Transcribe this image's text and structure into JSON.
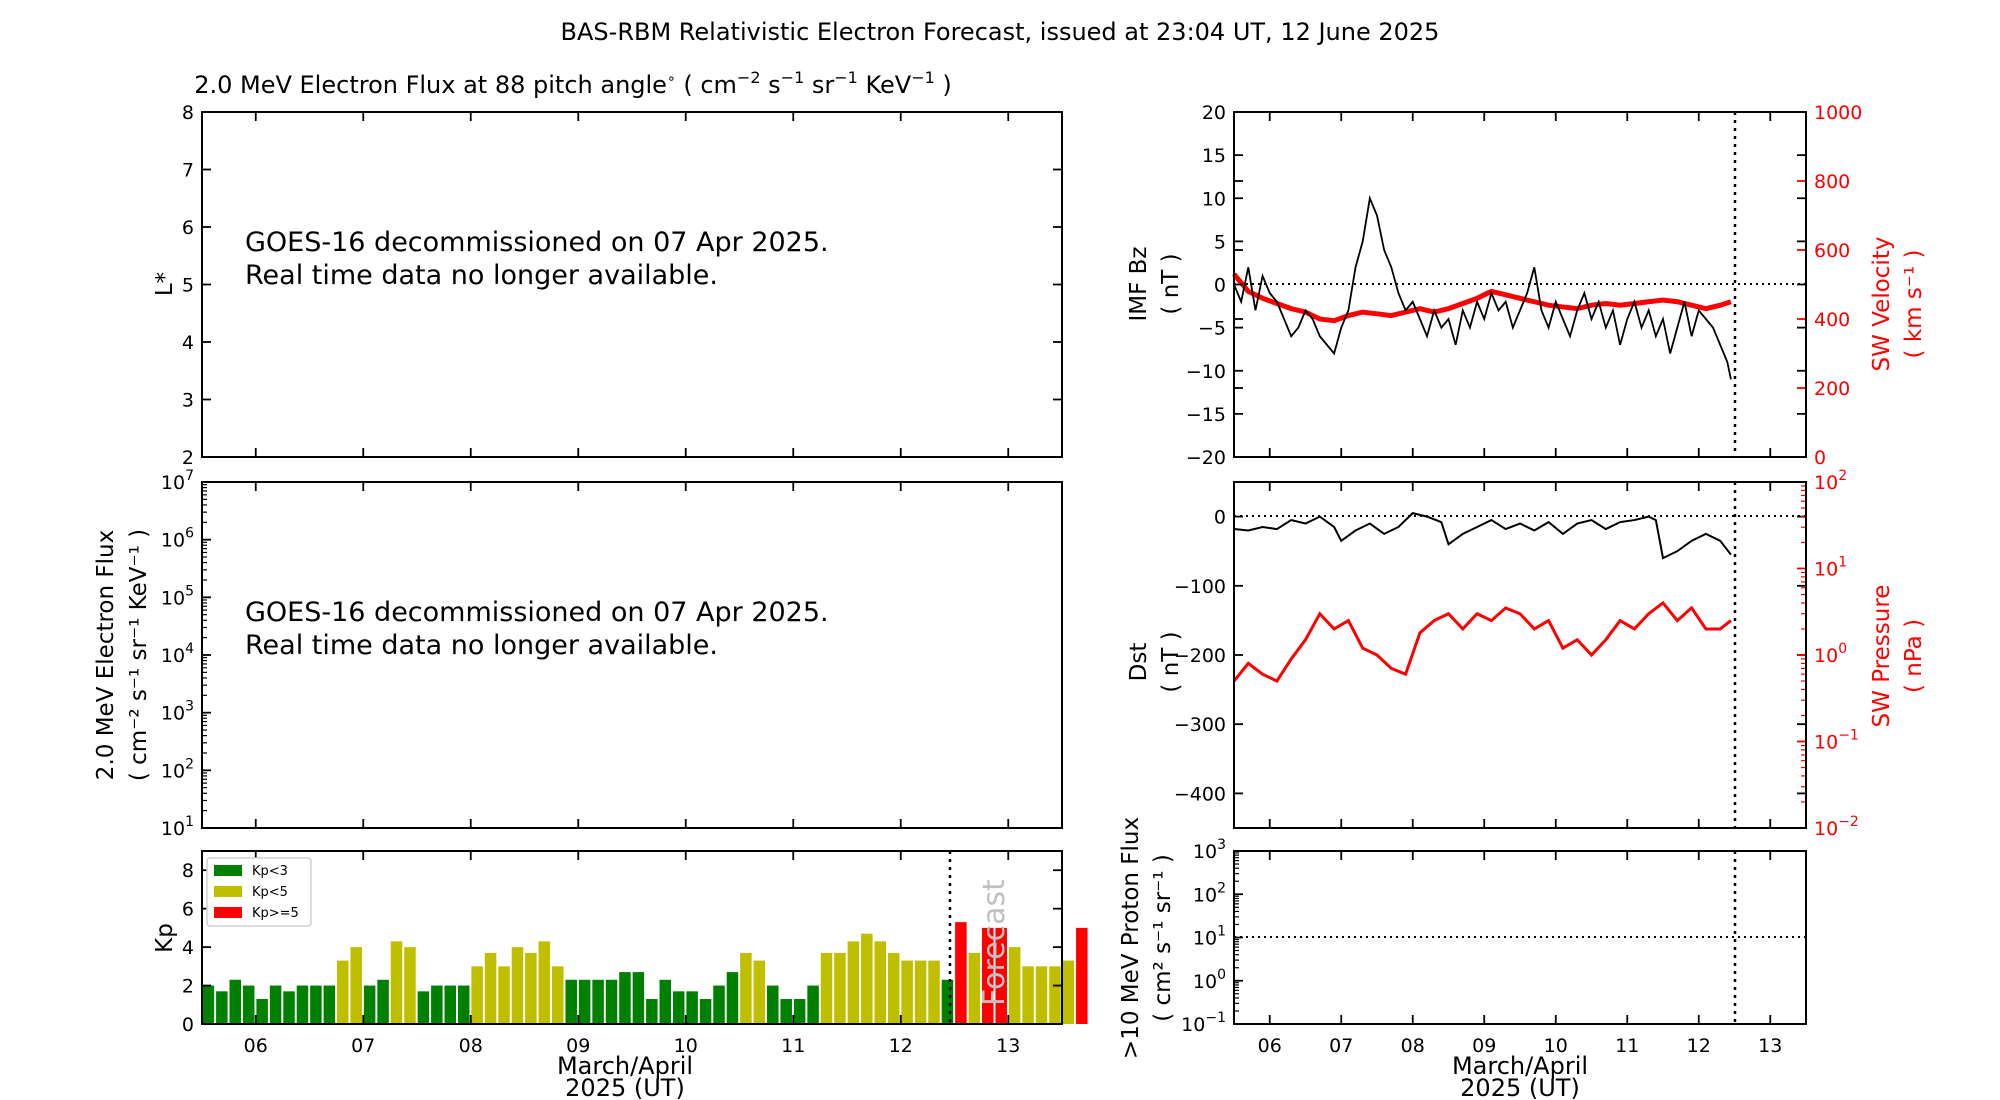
{
  "figure_title": "BAS-RBM Relativistic Electron Forecast, issued at 23:04 UT, 12 June 2025",
  "colors": {
    "green": "#008000",
    "yellow": "#bfbf00",
    "red": "#ff0000",
    "black": "#000000",
    "forecast_text": "#c0c0c0"
  },
  "date_ticks": [
    "06",
    "07",
    "08",
    "09",
    "10",
    "11",
    "12",
    "13"
  ],
  "xaxis_label_line1": "March/April",
  "xaxis_label_line2": "2025 (UT)",
  "notice": {
    "line1": "GOES-16 decommissioned on 07 Apr 2025.",
    "line2": "Real time data no longer available."
  },
  "chart_data": [
    {
      "id": "lstar",
      "type": "table",
      "title": "2.0 MeV Electron Flux at 88 pitch angle",
      "title_units": {
        "base1": "cm",
        "sup1": "−2",
        "base2": " s",
        "sup2": "−1",
        "base3": " sr",
        "sup3": "−1",
        "base4": " KeV",
        "sup4": "−1"
      },
      "ylabel": "L*",
      "ylim": [
        2,
        8
      ],
      "yticks": [
        "2",
        "3",
        "4",
        "5",
        "6",
        "7",
        "8"
      ]
    },
    {
      "id": "flux",
      "type": "line",
      "ylabel_line1": "2.0 MeV Electron Flux",
      "ylabel_line2": "( cm⁻² s⁻¹ sr⁻¹ KeV⁻¹ )",
      "yscale": "log",
      "ylim": [
        10,
        10000000
      ],
      "yticks": [
        {
          "base": "10",
          "exp": "1"
        },
        {
          "base": "10",
          "exp": "2"
        },
        {
          "base": "10",
          "exp": "3"
        },
        {
          "base": "10",
          "exp": "4"
        },
        {
          "base": "10",
          "exp": "5"
        },
        {
          "base": "10",
          "exp": "6"
        },
        {
          "base": "10",
          "exp": "7"
        }
      ]
    },
    {
      "id": "kp",
      "type": "bar",
      "ylabel": "Kp",
      "ylim": [
        0,
        9
      ],
      "yticks": [
        "0",
        "2",
        "4",
        "6",
        "8"
      ],
      "x_start_day": 5.5,
      "bin_days": 0.125,
      "now_day": 12.458,
      "forecast_label": "Forecast",
      "legend": {
        "placement": "top-left",
        "entries": [
          {
            "label": "Kp<3",
            "color": "#008000"
          },
          {
            "label": "Kp<5",
            "color": "#bfbf00"
          },
          {
            "label": "Kp>=5",
            "color": "#ff0000"
          }
        ]
      },
      "values": [
        2.0,
        1.7,
        2.3,
        2.0,
        1.3,
        2.0,
        1.7,
        2.0,
        2.0,
        2.0,
        3.3,
        4.0,
        2.0,
        2.3,
        4.3,
        4.0,
        1.7,
        2.0,
        2.0,
        2.0,
        3.0,
        3.7,
        3.0,
        4.0,
        3.7,
        4.3,
        3.0,
        2.3,
        2.3,
        2.3,
        2.3,
        2.7,
        2.7,
        1.3,
        2.3,
        1.7,
        1.7,
        1.3,
        2.0,
        2.7,
        3.7,
        3.3,
        2.0,
        1.3,
        1.3,
        2.0,
        3.7,
        3.7,
        4.3,
        4.7,
        4.3,
        3.7,
        3.3,
        3.3,
        3.3,
        2.3,
        5.3,
        3.7,
        5.0,
        5.0,
        4.0,
        3.0,
        3.0,
        3.0,
        3.3,
        5.0
      ]
    },
    {
      "id": "imf",
      "type": "line",
      "ylabel_line1": "IMF Bz",
      "ylabel_line2": "( nT )",
      "ylim": [
        -20,
        20
      ],
      "yticks": [
        "−20",
        "−15",
        "−10",
        "−5",
        "0",
        "5",
        "10",
        "15",
        "20"
      ],
      "y2label_line1": "SW Velocity",
      "y2label_line2": "( km s⁻¹ )",
      "y2lim": [
        0,
        1000
      ],
      "y2ticks": [
        "0",
        "200",
        "400",
        "600",
        "800",
        "1000"
      ],
      "series": [
        {
          "name": "IMF Bz",
          "color": "#000000",
          "x": [
            5.5,
            5.6,
            5.7,
            5.8,
            5.9,
            6.0,
            6.1,
            6.2,
            6.3,
            6.4,
            6.5,
            6.6,
            6.7,
            6.8,
            6.9,
            7.0,
            7.1,
            7.2,
            7.3,
            7.4,
            7.5,
            7.6,
            7.7,
            7.8,
            7.9,
            8.0,
            8.1,
            8.2,
            8.3,
            8.4,
            8.5,
            8.6,
            8.7,
            8.8,
            8.9,
            9.0,
            9.1,
            9.2,
            9.3,
            9.4,
            9.5,
            9.6,
            9.7,
            9.8,
            9.9,
            10.0,
            10.1,
            10.2,
            10.3,
            10.4,
            10.5,
            10.6,
            10.7,
            10.8,
            10.9,
            11.0,
            11.1,
            11.2,
            11.3,
            11.4,
            11.5,
            11.6,
            11.7,
            11.8,
            11.9,
            12.0,
            12.1,
            12.2,
            12.3,
            12.4,
            12.45
          ],
          "y": [
            0,
            -2,
            2,
            -3,
            1,
            -1,
            -2,
            -4,
            -6,
            -5,
            -3,
            -4,
            -6,
            -7,
            -8,
            -5,
            -3,
            2,
            5,
            10,
            8,
            4,
            2,
            -1,
            -3,
            -2,
            -4,
            -6,
            -3,
            -5,
            -4,
            -7,
            -3,
            -5,
            -2,
            -4,
            -1,
            -3,
            -2,
            -5,
            -3,
            -1,
            2,
            -3,
            -5,
            -2,
            -4,
            -6,
            -3,
            -1,
            -4,
            -2,
            -5,
            -3,
            -7,
            -4,
            -2,
            -5,
            -3,
            -6,
            -4,
            -8,
            -5,
            -2,
            -6,
            -3,
            -4,
            -5,
            -7,
            -9,
            -11
          ]
        },
        {
          "name": "SW Velocity",
          "color": "#ff0000",
          "x": [
            5.5,
            5.7,
            5.9,
            6.1,
            6.3,
            6.5,
            6.7,
            6.9,
            7.1,
            7.3,
            7.5,
            7.7,
            7.9,
            8.1,
            8.3,
            8.5,
            8.7,
            8.9,
            9.1,
            9.3,
            9.5,
            9.7,
            9.9,
            10.1,
            10.3,
            10.5,
            10.7,
            10.9,
            11.1,
            11.3,
            11.5,
            11.7,
            11.9,
            12.1,
            12.3,
            12.45
          ],
          "y": [
            530,
            480,
            460,
            445,
            430,
            420,
            400,
            395,
            410,
            420,
            415,
            410,
            420,
            430,
            420,
            430,
            445,
            460,
            480,
            470,
            460,
            450,
            440,
            435,
            430,
            440,
            445,
            440,
            445,
            450,
            455,
            450,
            440,
            430,
            440,
            450
          ]
        }
      ]
    },
    {
      "id": "dst",
      "type": "line",
      "ylabel_line1": "Dst",
      "ylabel_line2": "( nT )",
      "ylim": [
        -450,
        50
      ],
      "yticks": [
        "−400",
        "−300",
        "−200",
        "−100",
        "0"
      ],
      "y2label_line1": "SW Pressure",
      "y2label_line2": "( nPa )",
      "y2scale": "log",
      "y2lim": [
        0.01,
        100
      ],
      "y2ticks": [
        {
          "base": "10",
          "exp": "−2"
        },
        {
          "base": "10",
          "exp": "−1"
        },
        {
          "base": "10",
          "exp": "0"
        },
        {
          "base": "10",
          "exp": "1"
        },
        {
          "base": "10",
          "exp": "2"
        }
      ],
      "series": [
        {
          "name": "Dst",
          "color": "#000000",
          "x": [
            5.5,
            5.7,
            5.9,
            6.1,
            6.3,
            6.5,
            6.7,
            6.9,
            7.0,
            7.2,
            7.4,
            7.6,
            7.8,
            8.0,
            8.2,
            8.4,
            8.5,
            8.7,
            8.9,
            9.1,
            9.3,
            9.5,
            9.7,
            9.9,
            10.1,
            10.3,
            10.5,
            10.7,
            10.9,
            11.1,
            11.3,
            11.4,
            11.5,
            11.6,
            11.7,
            11.9,
            12.1,
            12.3,
            12.45
          ],
          "y": [
            -18,
            -20,
            -15,
            -18,
            -5,
            -10,
            0,
            -15,
            -35,
            -20,
            -10,
            -25,
            -15,
            5,
            0,
            -8,
            -40,
            -25,
            -15,
            -5,
            -18,
            -10,
            -20,
            -8,
            -25,
            -10,
            -5,
            -18,
            -8,
            -5,
            0,
            -5,
            -60,
            -55,
            -50,
            -35,
            -25,
            -35,
            -55
          ]
        },
        {
          "name": "SW Pressure",
          "color": "#ff0000",
          "x": [
            5.5,
            5.7,
            5.9,
            6.1,
            6.3,
            6.5,
            6.7,
            6.9,
            7.1,
            7.3,
            7.5,
            7.7,
            7.9,
            8.1,
            8.3,
            8.5,
            8.7,
            8.9,
            9.1,
            9.3,
            9.5,
            9.7,
            9.9,
            10.1,
            10.3,
            10.5,
            10.7,
            10.9,
            11.1,
            11.3,
            11.5,
            11.7,
            11.9,
            12.1,
            12.3,
            12.45
          ],
          "y": [
            0.5,
            0.8,
            0.6,
            0.5,
            0.9,
            1.5,
            3.0,
            2.0,
            2.5,
            1.2,
            1.0,
            0.7,
            0.6,
            1.8,
            2.5,
            3.0,
            2.0,
            3.0,
            2.5,
            3.5,
            3.0,
            2.0,
            2.5,
            1.2,
            1.5,
            1.0,
            1.5,
            2.5,
            2.0,
            3.0,
            4.0,
            2.5,
            3.5,
            2.0,
            2.0,
            2.5
          ]
        }
      ]
    },
    {
      "id": "proton",
      "type": "line",
      "ylabel_line1": ">10 MeV Proton Flux",
      "ylabel_line2": "( cm² s⁻¹ sr⁻¹ )",
      "yscale": "log",
      "ylim": [
        0.1,
        1000
      ],
      "threshold": 10,
      "yticks": [
        {
          "base": "10",
          "exp": "−1"
        },
        {
          "base": "10",
          "exp": "0"
        },
        {
          "base": "10",
          "exp": "1"
        },
        {
          "base": "10",
          "exp": "2"
        },
        {
          "base": "10",
          "exp": "3"
        }
      ]
    }
  ]
}
